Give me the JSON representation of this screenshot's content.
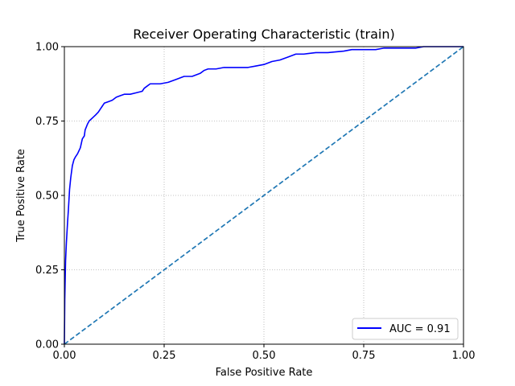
{
  "chart_data": {
    "type": "line",
    "title": "Receiver Operating Characteristic (train)",
    "xlabel": "False Positive Rate",
    "ylabel": "True Positive Rate",
    "xlim": [
      0,
      1
    ],
    "ylim": [
      0,
      1
    ],
    "xticks": [
      "0.00",
      "0.25",
      "0.50",
      "0.75",
      "1.00"
    ],
    "yticks": [
      "0.00",
      "0.25",
      "0.50",
      "0.75",
      "1.00"
    ],
    "grid": true,
    "legend_position": "lower right",
    "series": [
      {
        "name": "AUC = 0.91",
        "color": "#0000ff",
        "style": "solid",
        "x": [
          0,
          0.001,
          0.003,
          0.005,
          0.008,
          0.01,
          0.013,
          0.016,
          0.02,
          0.024,
          0.028,
          0.033,
          0.04,
          0.045,
          0.05,
          0.052,
          0.055,
          0.058,
          0.062,
          0.07,
          0.078,
          0.085,
          0.09,
          0.095,
          0.1,
          0.11,
          0.12,
          0.13,
          0.14,
          0.15,
          0.165,
          0.18,
          0.195,
          0.2,
          0.205,
          0.215,
          0.225,
          0.24,
          0.26,
          0.28,
          0.3,
          0.32,
          0.34,
          0.35,
          0.36,
          0.38,
          0.4,
          0.43,
          0.46,
          0.48,
          0.5,
          0.52,
          0.54,
          0.56,
          0.58,
          0.6,
          0.63,
          0.66,
          0.7,
          0.72,
          0.75,
          0.78,
          0.8,
          0.85,
          0.88,
          0.9,
          0.92,
          0.95,
          1.0
        ],
        "y": [
          0,
          0.15,
          0.28,
          0.34,
          0.41,
          0.45,
          0.52,
          0.56,
          0.6,
          0.62,
          0.63,
          0.64,
          0.66,
          0.69,
          0.7,
          0.72,
          0.73,
          0.74,
          0.75,
          0.76,
          0.77,
          0.78,
          0.79,
          0.8,
          0.81,
          0.815,
          0.82,
          0.83,
          0.835,
          0.84,
          0.84,
          0.845,
          0.85,
          0.86,
          0.865,
          0.875,
          0.875,
          0.875,
          0.88,
          0.89,
          0.9,
          0.9,
          0.91,
          0.92,
          0.925,
          0.925,
          0.93,
          0.93,
          0.93,
          0.935,
          0.94,
          0.95,
          0.955,
          0.965,
          0.975,
          0.975,
          0.98,
          0.98,
          0.985,
          0.99,
          0.99,
          0.99,
          0.995,
          0.995,
          0.995,
          1.0,
          1.0,
          1.0,
          1.0
        ]
      },
      {
        "name": "",
        "color": "#1f77b4",
        "style": "dashed",
        "x": [
          0,
          1
        ],
        "y": [
          0,
          1
        ]
      }
    ]
  }
}
